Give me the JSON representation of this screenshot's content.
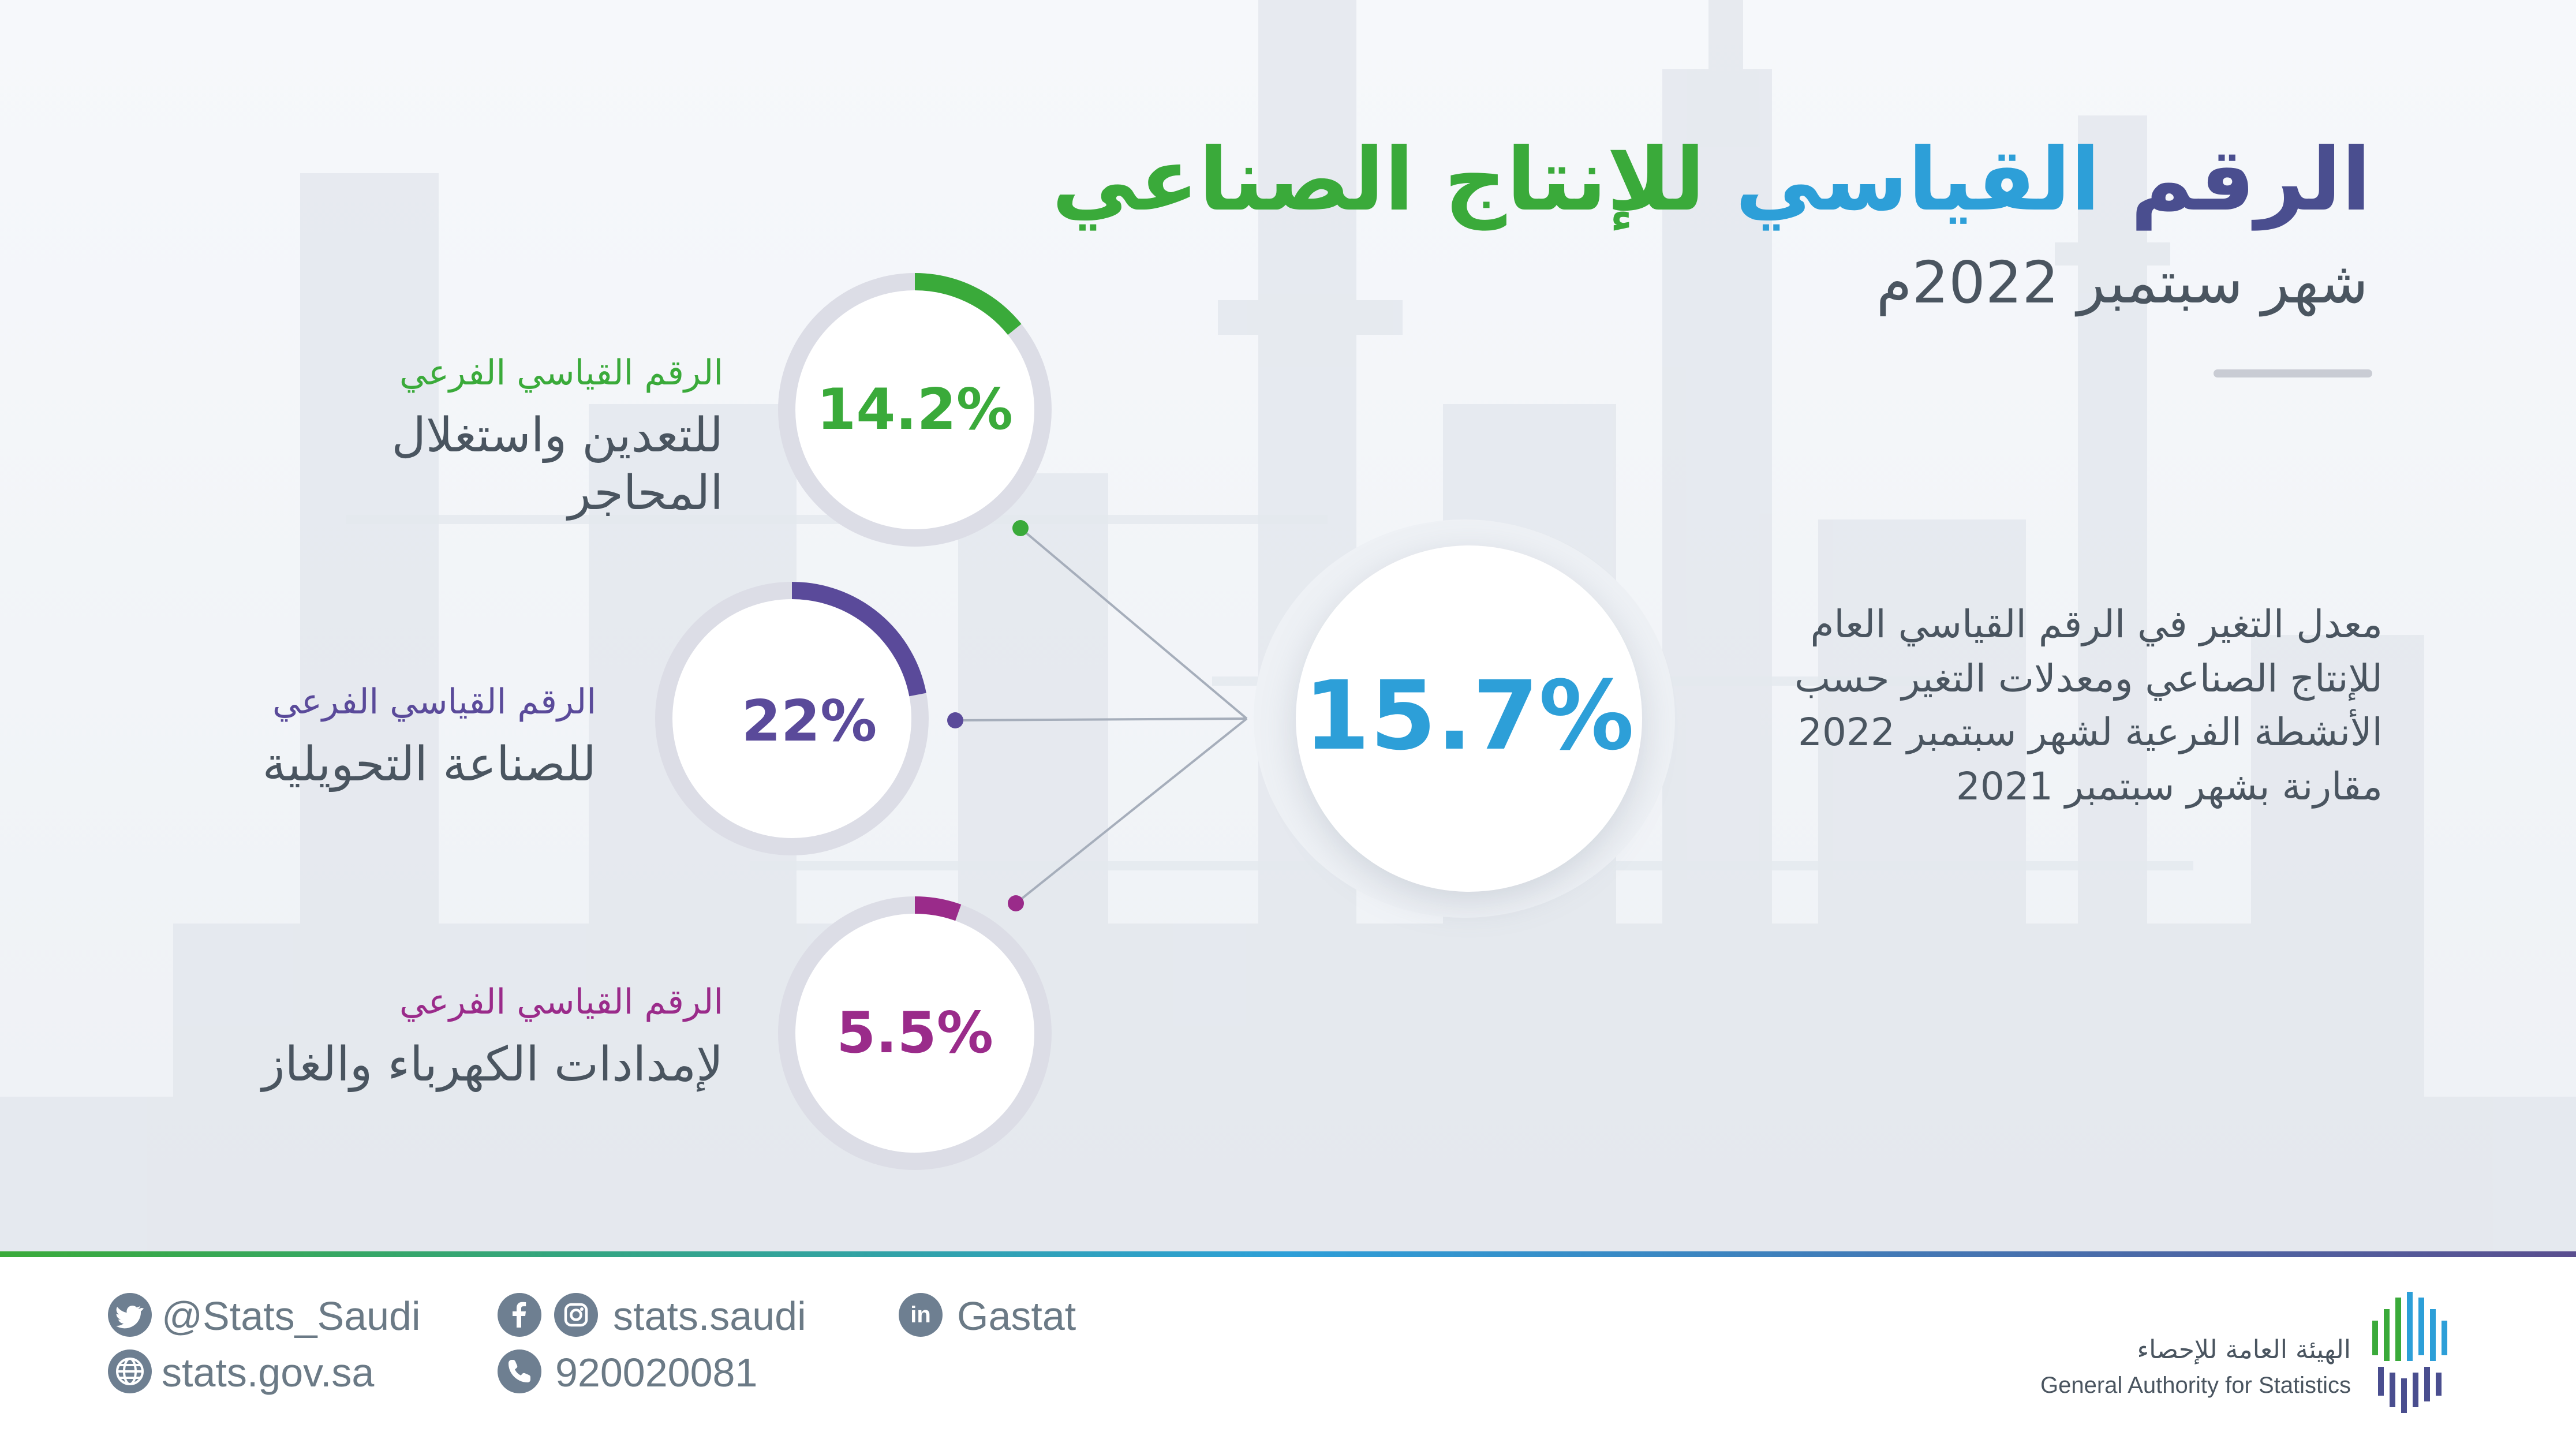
{
  "header": {
    "title_word_1": "الرقم",
    "title_word_2": "القياسي",
    "title_word_3": "للإنتاج الصناعي",
    "subtitle": "شهر سبتمبر   2022م"
  },
  "main_indicator": {
    "value": "15.7%",
    "description": "معدل التغير في الرقم القياسي العام للإنتاج الصناعي ومعدلات التغير حسب الأنشطة الفرعية لشهر سبتمبر 2022 مقارنة بشهر سبتمبر 2021"
  },
  "sub_indices": [
    {
      "value_label": "14.2%",
      "percent": 14.2,
      "color": "#3aaa3a",
      "title": "الرقم القياسي الفرعي",
      "name": "للتعدين واستغلال المحاجر"
    },
    {
      "value_label": "22%",
      "percent": 22,
      "color": "#5a4a9a",
      "title": "الرقم القياسي الفرعي",
      "name": "للصناعة التحويلية"
    },
    {
      "value_label": "5.5%",
      "percent": 5.5,
      "color": "#9a2b8a",
      "title": "الرقم القياسي الفرعي",
      "name": "لإمدادات الكهرباء والغاز"
    }
  ],
  "colors": {
    "ring_track": "#dcdde6",
    "title_purple": "#4a4e8f",
    "title_blue": "#2d9fd8",
    "title_green": "#3aaa3a",
    "text_gray": "#4a5560"
  },
  "footer": {
    "twitter_icon": "twitter-icon",
    "twitter": "@Stats_Saudi",
    "website_icon": "globe-icon",
    "website": "stats.gov.sa",
    "facebook_icon": "facebook-icon",
    "instagram_icon": "instagram-icon",
    "social": "stats.saudi",
    "phone_icon": "phone-icon",
    "phone": "920020081",
    "linkedin_icon": "linkedin-icon",
    "linkedin": "Gastat",
    "org_name_ar": "الهيئة العامة للإحصاء",
    "org_name_en": "General Authority for Statistics"
  }
}
